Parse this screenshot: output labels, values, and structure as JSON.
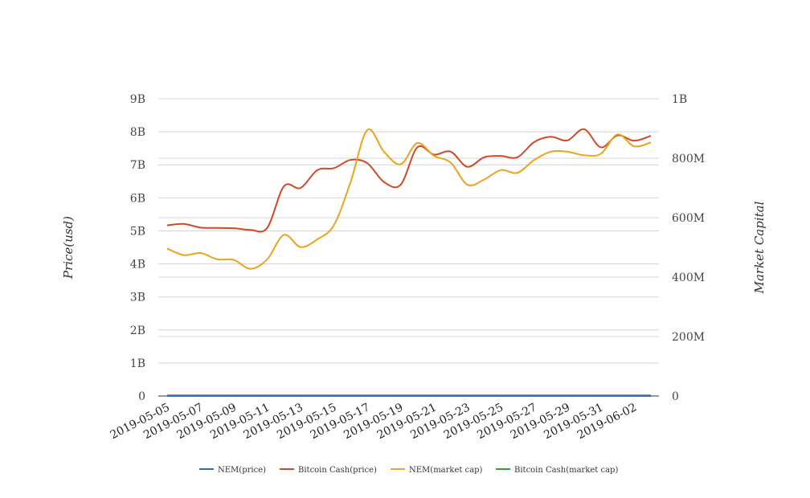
{
  "chart_data": {
    "type": "line",
    "x_dates": [
      "2019-05-05",
      "2019-05-06",
      "2019-05-07",
      "2019-05-08",
      "2019-05-09",
      "2019-05-10",
      "2019-05-11",
      "2019-05-12",
      "2019-05-13",
      "2019-05-14",
      "2019-05-15",
      "2019-05-16",
      "2019-05-17",
      "2019-05-18",
      "2019-05-19",
      "2019-05-20",
      "2019-05-21",
      "2019-05-22",
      "2019-05-23",
      "2019-05-24",
      "2019-05-25",
      "2019-05-26",
      "2019-05-27",
      "2019-05-28",
      "2019-05-29",
      "2019-05-30",
      "2019-05-31",
      "2019-06-01",
      "2019-06-02",
      "2019-06-03"
    ],
    "x_tick_labels": [
      "2019-05-05",
      "2019-05-07",
      "2019-05-09",
      "2019-05-11",
      "2019-05-13",
      "2019-05-15",
      "2019-05-17",
      "2019-05-19",
      "2019-05-21",
      "2019-05-23",
      "2019-05-25",
      "2019-05-27",
      "2019-05-29",
      "2019-05-31",
      "2019-06-02"
    ],
    "y_left": {
      "label": "Price(usd)",
      "ylim": [
        0,
        9000000000
      ],
      "ticks": [
        0,
        1000000000,
        2000000000,
        3000000000,
        4000000000,
        5000000000,
        6000000000,
        7000000000,
        8000000000,
        9000000000
      ],
      "tick_labels": [
        "0",
        "1B",
        "2B",
        "3B",
        "4B",
        "5B",
        "6B",
        "7B",
        "8B",
        "9B"
      ]
    },
    "y_right": {
      "label": "Market Capital",
      "ylim": [
        0,
        1000000000
      ],
      "ticks": [
        0,
        200000000,
        400000000,
        600000000,
        800000000,
        1000000000
      ],
      "tick_labels": [
        "0",
        "200M",
        "400M",
        "600M",
        "800M",
        "1B"
      ]
    },
    "grid": true,
    "legend_position": "bottom",
    "series": [
      {
        "name": "NEM(price)",
        "axis": "left",
        "color": "#2f6db5",
        "values": [
          0.09,
          0.09,
          0.09,
          0.09,
          0.09,
          0.09,
          0.09,
          0.09,
          0.09,
          0.09,
          0.09,
          0.09,
          0.09,
          0.09,
          0.09,
          0.09,
          0.09,
          0.09,
          0.09,
          0.09,
          0.09,
          0.09,
          0.09,
          0.09,
          0.09,
          0.09,
          0.09,
          0.09,
          0.09,
          0.09
        ]
      },
      {
        "name": "Bitcoin Cash(price)",
        "axis": "left",
        "color": "#cf4a24",
        "values": [
          5170000000,
          5210000000,
          5100000000,
          5090000000,
          5080000000,
          5030000000,
          5090000000,
          6350000000,
          6300000000,
          6840000000,
          6900000000,
          7150000000,
          7050000000,
          6480000000,
          6400000000,
          7530000000,
          7310000000,
          7400000000,
          6940000000,
          7230000000,
          7270000000,
          7230000000,
          7690000000,
          7850000000,
          7740000000,
          8080000000,
          7530000000,
          7890000000,
          7730000000,
          7880000000
        ]
      },
      {
        "name": "NEM(market cap)",
        "axis": "right",
        "color": "#eda21d",
        "values": [
          496000000,
          474000000,
          481000000,
          460000000,
          458000000,
          428000000,
          460000000,
          542000000,
          501000000,
          527000000,
          575000000,
          720000000,
          895000000,
          822000000,
          780000000,
          851000000,
          808000000,
          785000000,
          711000000,
          728000000,
          760000000,
          751000000,
          794000000,
          822000000,
          822000000,
          810000000,
          815000000,
          880000000,
          840000000,
          853000000
        ]
      },
      {
        "name": "Bitcoin Cash(market cap)",
        "axis": "right",
        "color": "#2aa33b",
        "values": [
          2100000,
          2100000,
          2100000,
          2100000,
          2100000,
          2100000,
          2100000,
          2100000,
          2100000,
          2100000,
          2100000,
          2100000,
          2100000,
          2100000,
          2100000,
          2100000,
          2100000,
          2100000,
          2100000,
          2100000,
          2100000,
          2100000,
          2100000,
          2100000,
          2100000,
          2100000,
          2100000,
          2100000,
          2100000,
          2100000
        ]
      }
    ]
  }
}
